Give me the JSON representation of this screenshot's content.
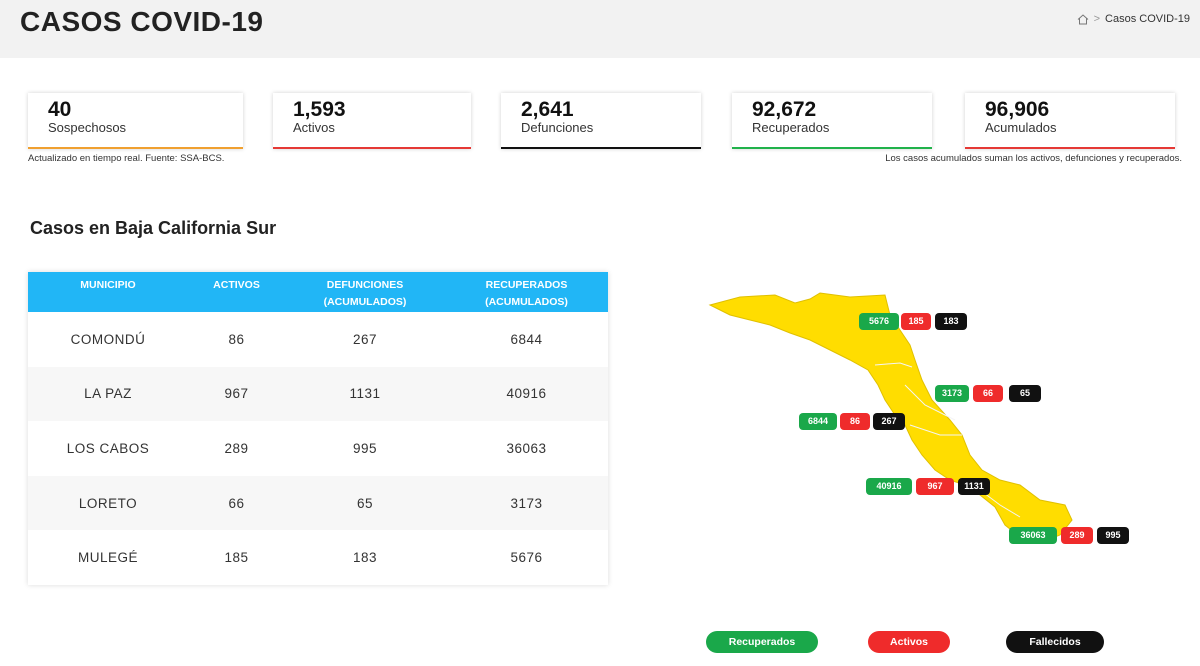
{
  "header": {
    "title": "CASOS COVID-19",
    "breadcrumb_current": "Casos COVID-19",
    "breadcrumb_sep": ">"
  },
  "stats": [
    {
      "value": "40",
      "label": "Sospechosos",
      "color": "#f0a030"
    },
    {
      "value": "1,593",
      "label": "Activos",
      "color": "#e53935"
    },
    {
      "value": "2,641",
      "label": "Defunciones",
      "color": "#111111"
    },
    {
      "value": "92,672",
      "label": "Recuperados",
      "color": "#21b24b"
    },
    {
      "value": "96,906",
      "label": "Acumulados",
      "color": "#e53935"
    }
  ],
  "notes": {
    "left": "Actualizado en tiempo real. Fuente: SSA-BCS.",
    "right": "Los casos acumulados suman los activos, defunciones y recuperados."
  },
  "section_title": "Casos en Baja California Sur",
  "table": {
    "headers": [
      "MUNICIPIO",
      "ACTIVOS",
      "DEFUNCIONES\n(ACUMULADOS)",
      "RECUPERADOS\n(ACUMULADOS)"
    ],
    "header_lines": [
      [
        "MUNICIPIO"
      ],
      [
        "ACTIVOS"
      ],
      [
        "DEFUNCIONES",
        "(ACUMULADOS)"
      ],
      [
        "RECUPERADOS",
        "(ACUMULADOS)"
      ]
    ],
    "rows": [
      [
        "COMONDÚ",
        "86",
        "267",
        "6844"
      ],
      [
        "LA PAZ",
        "967",
        "1131",
        "40916"
      ],
      [
        "LOS CABOS",
        "289",
        "995",
        "36063"
      ],
      [
        "LORETO",
        "66",
        "65",
        "3173"
      ],
      [
        "MULEGÉ",
        "185",
        "183",
        "5676"
      ]
    ]
  },
  "map": {
    "fill_color": "#ffdd00",
    "markers": [
      {
        "municipio": "MULEGÉ",
        "recuperados": "5676",
        "activos": "185",
        "fallecidos": "183"
      },
      {
        "municipio": "LORETO",
        "recuperados": "3173",
        "activos": "66",
        "fallecidos": "65"
      },
      {
        "municipio": "COMONDÚ",
        "recuperados": "6844",
        "activos": "86",
        "fallecidos": "267"
      },
      {
        "municipio": "LA PAZ",
        "recuperados": "40916",
        "activos": "967",
        "fallecidos": "1131"
      },
      {
        "municipio": "LOS CABOS",
        "recuperados": "36063",
        "activos": "289",
        "fallecidos": "995"
      }
    ]
  },
  "legend": [
    {
      "label": "Recuperados",
      "color": "#1aa84a"
    },
    {
      "label": "Activos",
      "color": "#ef2b2b"
    },
    {
      "label": "Fallecidos",
      "color": "#111111"
    }
  ],
  "colors": {
    "table_header": "#21b6f6",
    "header_band": "#f2f2f2"
  }
}
